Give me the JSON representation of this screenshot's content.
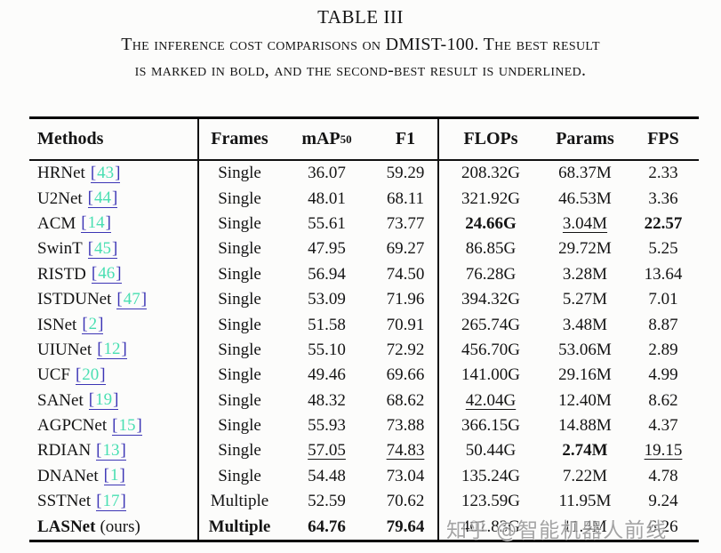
{
  "title": "TABLE III",
  "caption": {
    "line1": "The inference cost comparisons on DMIST-100. The best result",
    "line2": "is marked in bold, and the second-best result is underlined."
  },
  "colors": {
    "cite_bracket": "#3c35b5",
    "cite_number": "#49dfb2",
    "rule": "#000000",
    "watermark": "#8f8f8f"
  },
  "table": {
    "headers": [
      "Methods",
      "Frames",
      "mAP",
      "F1",
      "FLOPs",
      "Params",
      "FPS"
    ],
    "map_subscript": "50",
    "rows": [
      {
        "method": "HRNet",
        "cite": "43",
        "frames": "Single",
        "map": "36.07",
        "f1": "59.29",
        "flops": "208.32G",
        "params": "68.37M",
        "fps": "2.33"
      },
      {
        "method": "U2Net",
        "cite": "44",
        "frames": "Single",
        "map": "48.01",
        "f1": "68.11",
        "flops": "321.92G",
        "params": "46.53M",
        "fps": "3.36"
      },
      {
        "method": "ACM",
        "cite": "14",
        "frames": "Single",
        "map": "55.61",
        "f1": "73.77",
        "flops": "24.66G",
        "params": "3.04M",
        "fps": "22.57",
        "styles": {
          "flops": "b",
          "params": "u",
          "fps": "b"
        }
      },
      {
        "method": "SwinT",
        "cite": "45",
        "frames": "Single",
        "map": "47.95",
        "f1": "69.27",
        "flops": "86.85G",
        "params": "29.72M",
        "fps": "5.25"
      },
      {
        "method": "RISTD",
        "cite": "46",
        "frames": "Single",
        "map": "56.94",
        "f1": "74.50",
        "flops": "76.28G",
        "params": "3.28M",
        "fps": "13.64"
      },
      {
        "method": "ISTDUNet",
        "cite": "47",
        "frames": "Single",
        "map": "53.09",
        "f1": "71.96",
        "flops": "394.32G",
        "params": "5.27M",
        "fps": "7.01"
      },
      {
        "method": "ISNet",
        "cite": "2",
        "frames": "Single",
        "map": "51.58",
        "f1": "70.91",
        "flops": "265.74G",
        "params": "3.48M",
        "fps": "8.87"
      },
      {
        "method": "UIUNet",
        "cite": "12",
        "frames": "Single",
        "map": "55.10",
        "f1": "72.92",
        "flops": "456.70G",
        "params": "53.06M",
        "fps": "2.89"
      },
      {
        "method": "UCF",
        "cite": "20",
        "frames": "Single",
        "map": "49.46",
        "f1": "69.66",
        "flops": "141.00G",
        "params": "29.16M",
        "fps": "4.99"
      },
      {
        "method": "SANet",
        "cite": "19",
        "frames": "Single",
        "map": "48.32",
        "f1": "68.62",
        "flops": "42.04G",
        "params": "12.40M",
        "fps": "8.62",
        "styles": {
          "flops": "u"
        }
      },
      {
        "method": "AGPCNet",
        "cite": "15",
        "frames": "Single",
        "map": "55.93",
        "f1": "73.88",
        "flops": "366.15G",
        "params": "14.88M",
        "fps": "4.37"
      },
      {
        "method": "RDIAN",
        "cite": "13",
        "frames": "Single",
        "map": "57.05",
        "f1": "74.83",
        "flops": "50.44G",
        "params": "2.74M",
        "fps": "19.15",
        "styles": {
          "map": "u",
          "f1": "u",
          "params": "b",
          "fps": "u"
        }
      },
      {
        "method": "DNANet",
        "cite": "1",
        "frames": "Single",
        "map": "54.48",
        "f1": "73.04",
        "flops": "135.24G",
        "params": "7.22M",
        "fps": "4.78"
      },
      {
        "method": "SSTNet",
        "cite": "17",
        "frames": "Multiple",
        "map": "52.59",
        "f1": "70.62",
        "flops": "123.59G",
        "params": "11.95M",
        "fps": "9.24"
      },
      {
        "method": "LASNet",
        "suffix": "(ours)",
        "frames": "Multiple",
        "map": "64.76",
        "f1": "79.64",
        "flops": "401.83G",
        "params": "11.4M",
        "fps": "6.26",
        "styles": {
          "method": "b",
          "frames": "b",
          "map": "b",
          "f1": "b"
        }
      }
    ]
  },
  "watermark": {
    "text": "知乎 @智能机器人前线"
  }
}
